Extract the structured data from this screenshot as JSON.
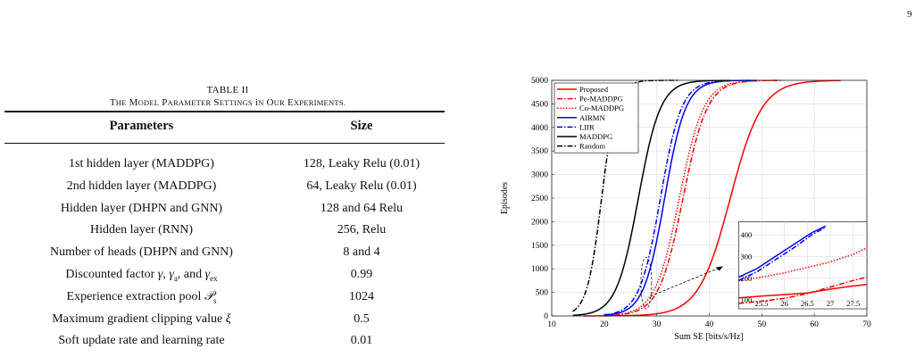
{
  "page_number": "9",
  "table": {
    "label": "TABLE II",
    "title": "The Model Parameter Settings in Our Experiments.",
    "headers": [
      "Parameters",
      "Size"
    ],
    "rows": [
      [
        "1st hidden layer (MADDPG)",
        "128, Leaky Relu (0.01)"
      ],
      [
        "2nd hidden layer (MADDPG)",
        "64, Leaky Relu (0.01)"
      ],
      [
        "Hidden layer (DHPN and GNN)",
        "128 and 64 Relu"
      ],
      [
        "Hidden layer (RNN)",
        "256, Relu"
      ],
      [
        "Number of heads (DHPN and GNN)",
        "8 and 4"
      ],
      [
        "Discounted factor γ, γa, and γex",
        "0.99"
      ],
      [
        "Experience extraction pool Ps",
        "1024"
      ],
      [
        "Maximum gradient clipping value ξ",
        "0.5"
      ],
      [
        "Soft update rate and learning rate",
        "0.01"
      ]
    ]
  },
  "chart_data": {
    "type": "line",
    "xlabel": "Sum SE [bits/s/Hz]",
    "ylabel": "Episodes",
    "xlim": [
      10,
      70
    ],
    "ylim": [
      0,
      5000
    ],
    "xticks": [
      "10",
      "20",
      "30",
      "40",
      "50",
      "60",
      "70"
    ],
    "yticks": [
      "0",
      "500",
      "1000",
      "1500",
      "2000",
      "2500",
      "3000",
      "3500",
      "4000",
      "4500",
      "5000"
    ],
    "grid": true,
    "legend_position": "top-left",
    "series": [
      {
        "name": "Proposed",
        "color": "#ff0000",
        "style": "solid",
        "center": 44.0,
        "scale": 3.0,
        "start": 16,
        "end": 65
      },
      {
        "name": "Pe-MADDPG",
        "color": "#ff0000",
        "style": "dashdot",
        "center": 35.0,
        "scale": 2.3,
        "start": 20,
        "end": 54
      },
      {
        "name": "Co-MADDPG",
        "color": "#ff0000",
        "style": "dotted",
        "center": 34.3,
        "scale": 2.3,
        "start": 20,
        "end": 53
      },
      {
        "name": "AIRMN",
        "color": "#0000ff",
        "style": "solid",
        "center": 31.5,
        "scale": 2.0,
        "start": 20,
        "end": 49
      },
      {
        "name": "LIIR",
        "color": "#0000ff",
        "style": "dashdot",
        "center": 30.7,
        "scale": 2.0,
        "start": 20,
        "end": 48
      },
      {
        "name": "MADDPG",
        "color": "#000000",
        "style": "solid",
        "center": 26.5,
        "scale": 2.1,
        "start": 14,
        "end": 44
      },
      {
        "name": "Random",
        "color": "#000000",
        "style": "dashdot",
        "center": 19.5,
        "scale": 1.4,
        "start": 14,
        "end": 34
      }
    ],
    "inset": {
      "xlim": [
        25,
        27.8
      ],
      "ylim": [
        60,
        460
      ],
      "xticks": [
        "25.5",
        "26",
        "26.5",
        "27",
        "27.5"
      ],
      "yticks": [
        "100",
        "200",
        "300",
        "400"
      ],
      "series": [
        {
          "name": "Proposed",
          "x": [
            25,
            25.5,
            26,
            26.5,
            27,
            27.5,
            27.8
          ],
          "y": [
            110,
            118,
            125,
            133,
            150,
            165,
            172
          ]
        },
        {
          "name": "Pe-MADDPG",
          "x": [
            25,
            25.5,
            26,
            26.5,
            27,
            27.5,
            27.8
          ],
          "y": [
            85,
            95,
            108,
            130,
            160,
            190,
            205
          ]
        },
        {
          "name": "Co-MADDPG",
          "x": [
            25,
            25.5,
            26,
            26.5,
            27,
            27.5,
            27.8
          ],
          "y": [
            190,
            205,
            225,
            250,
            275,
            310,
            340
          ]
        },
        {
          "name": "AIRMN",
          "x": [
            25,
            25.4,
            25.8,
            26.2,
            26.6,
            26.9
          ],
          "y": [
            205,
            245,
            300,
            355,
            410,
            440
          ]
        },
        {
          "name": "LIIR",
          "x": [
            25,
            25.4,
            25.8,
            26.2,
            26.6,
            26.9
          ],
          "y": [
            190,
            230,
            285,
            340,
            400,
            435
          ]
        }
      ]
    }
  }
}
